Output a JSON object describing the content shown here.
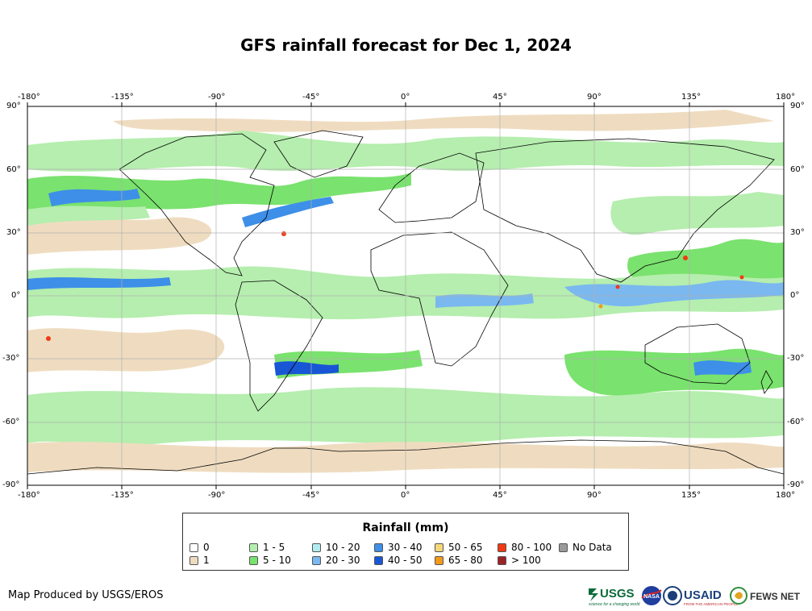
{
  "title": "GFS rainfall forecast for Dec 1, 2024",
  "map": {
    "lon_ticks": [
      "-180°",
      "-135°",
      "-90°",
      "-45°",
      "0°",
      "45°",
      "90°",
      "135°",
      "180°"
    ],
    "lat_ticks": [
      "90°",
      "60°",
      "30°",
      "0°",
      "-30°",
      "-60°",
      "-90°"
    ],
    "colors": {
      "water": "#ffffff",
      "land_outline": "#000000",
      "grid": "#b0b0b0"
    }
  },
  "legend": {
    "title": "Rainfall (mm)",
    "items": [
      {
        "label": "0",
        "color": "#ffffff"
      },
      {
        "label": "1",
        "color": "#efdcc0"
      },
      {
        "label": "1 - 5",
        "color": "#b5eeae"
      },
      {
        "label": "5 - 10",
        "color": "#7ae26e"
      },
      {
        "label": "10 - 20",
        "color": "#b2ecf0"
      },
      {
        "label": "20 - 30",
        "color": "#7ab8ef"
      },
      {
        "label": "30 - 40",
        "color": "#3d8fe8"
      },
      {
        "label": "40 - 50",
        "color": "#1856d6"
      },
      {
        "label": "50 - 65",
        "color": "#f5d77a"
      },
      {
        "label": "65 - 80",
        "color": "#f39a18"
      },
      {
        "label": "80 - 100",
        "color": "#f03a14"
      },
      {
        "label": "> 100",
        "color": "#9c2323"
      },
      {
        "label": "No Data",
        "color": "#999999"
      }
    ]
  },
  "credit": "Map Produced by USGS/EROS",
  "logos": {
    "usgs": "USGS",
    "usgs_tagline": "science for a changing world",
    "nasa": "NASA",
    "usaid": "USAID",
    "usaid_tagline": "FROM THE AMERICAN PEOPLE",
    "fewsnet": "FEWS NET"
  }
}
